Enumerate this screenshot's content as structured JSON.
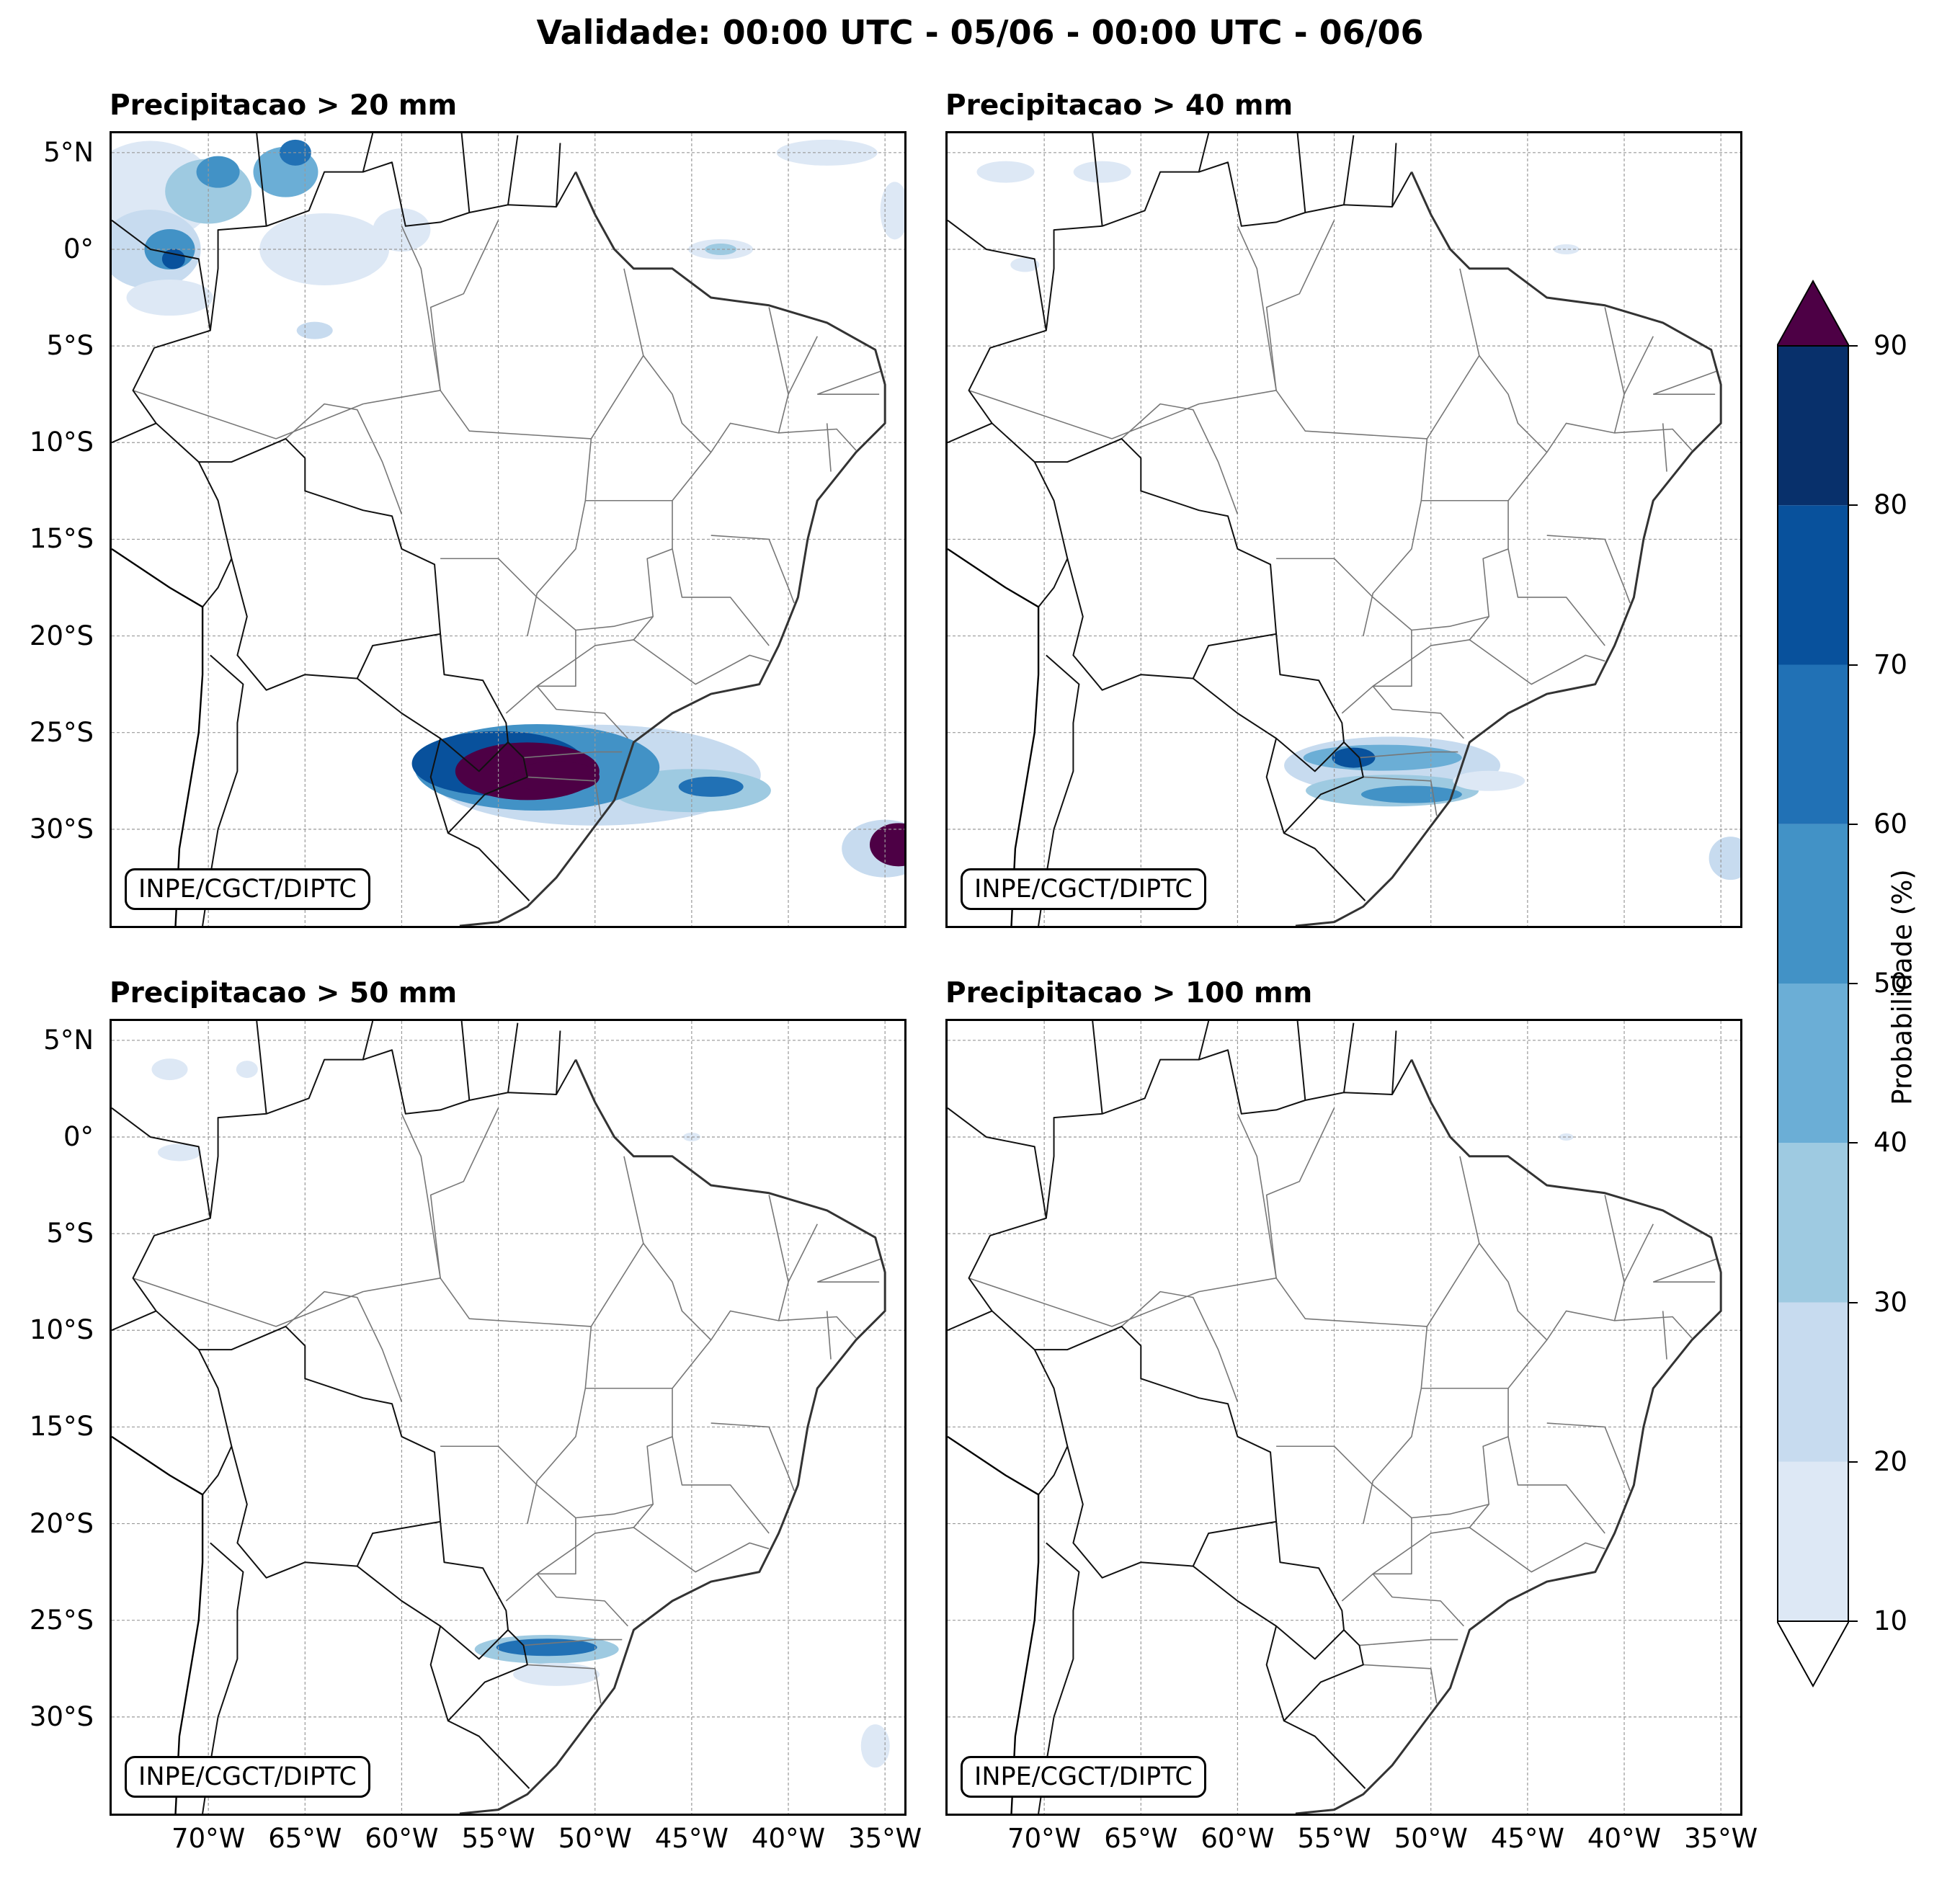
{
  "title": "Validade: 00:00 UTC - 05/06 - 00:00 UTC - 06/06",
  "credit": "INPE/CGCT/DIPTC",
  "lat_labels": [
    "5°N",
    "0°",
    "5°S",
    "10°S",
    "15°S",
    "20°S",
    "25°S",
    "30°S"
  ],
  "lon_labels": [
    "70°W",
    "65°W",
    "60°W",
    "55°W",
    "50°W",
    "45°W",
    "40°W",
    "35°W"
  ],
  "map_extent": {
    "lon": [
      -75,
      -34
    ],
    "lat": [
      -35,
      6
    ]
  },
  "panels": [
    {
      "title": "Precipitacao > 20 mm",
      "threshold_mm": 20
    },
    {
      "title": "Precipitacao > 40 mm",
      "threshold_mm": 40
    },
    {
      "title": "Precipitacao > 50 mm",
      "threshold_mm": 50
    },
    {
      "title": "Precipitacao > 100 mm",
      "threshold_mm": 100
    }
  ],
  "colorbar": {
    "title": "Probabilidade (%)",
    "ticks": [
      "10",
      "20",
      "30",
      "40",
      "50",
      "60",
      "70",
      "80",
      "90"
    ],
    "colors": [
      "#dde8f5",
      "#c7dbef",
      "#9ecae1",
      "#6baed6",
      "#4292c6",
      "#2171b5",
      "#08519c",
      "#08306b"
    ],
    "extend_max_color": "#4d0045",
    "extend_min_color": "#ffffff"
  }
}
